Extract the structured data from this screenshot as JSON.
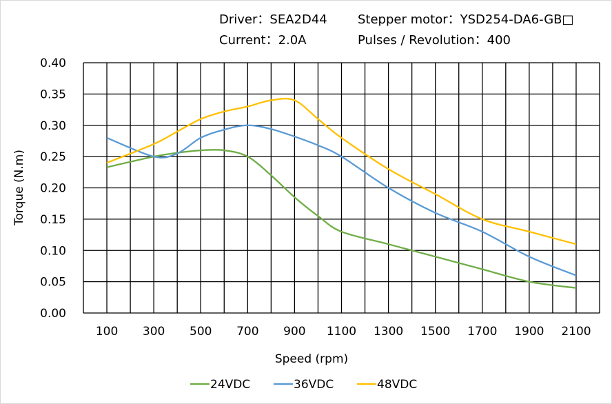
{
  "header": {
    "driver": "Driver：SEA2D44",
    "motor": "Stepper  motor：YSD254-DA6-GB□",
    "current": "Current：2.0A",
    "pulses": "Pulses / Revolution：400"
  },
  "chart_data": {
    "type": "line",
    "title": "",
    "xlabel": "Speed  (rpm)",
    "ylabel": "Torque (N.m)",
    "xlim": [
      0,
      2200
    ],
    "ylim": [
      0,
      0.4
    ],
    "grid": true,
    "legend_position": "bottom",
    "x_tick_labels": [
      "100",
      "300",
      "500",
      "700",
      "900",
      "1100",
      "1300",
      "1500",
      "1700",
      "1900",
      "2100"
    ],
    "y_tick_labels": [
      "0.00",
      "0.05",
      "0.10",
      "0.15",
      "0.20",
      "0.25",
      "0.30",
      "0.35",
      "0.40"
    ],
    "series": [
      {
        "name": "24VDC",
        "color": "#70ad47",
        "x": [
          100,
          300,
          400,
          500,
          600,
          700,
          800,
          900,
          1000,
          1100,
          1300,
          1500,
          1700,
          1900,
          2100
        ],
        "y": [
          0.233,
          0.25,
          0.256,
          0.26,
          0.26,
          0.25,
          0.22,
          0.185,
          0.155,
          0.13,
          0.11,
          0.09,
          0.07,
          0.05,
          0.04
        ]
      },
      {
        "name": "36VDC",
        "color": "#5b9bd5",
        "x": [
          100,
          300,
          400,
          500,
          600,
          700,
          800,
          900,
          1000,
          1100,
          1300,
          1500,
          1700,
          1900,
          2100
        ],
        "y": [
          0.28,
          0.25,
          0.255,
          0.28,
          0.293,
          0.3,
          0.294,
          0.282,
          0.268,
          0.25,
          0.2,
          0.16,
          0.13,
          0.09,
          0.06
        ]
      },
      {
        "name": "48VDC",
        "color": "#ffc000",
        "x": [
          100,
          300,
          400,
          500,
          600,
          700,
          800,
          900,
          1000,
          1100,
          1300,
          1500,
          1700,
          1900,
          2100
        ],
        "y": [
          0.24,
          0.27,
          0.29,
          0.31,
          0.322,
          0.33,
          0.34,
          0.34,
          0.31,
          0.28,
          0.23,
          0.19,
          0.15,
          0.13,
          0.11
        ]
      }
    ]
  }
}
